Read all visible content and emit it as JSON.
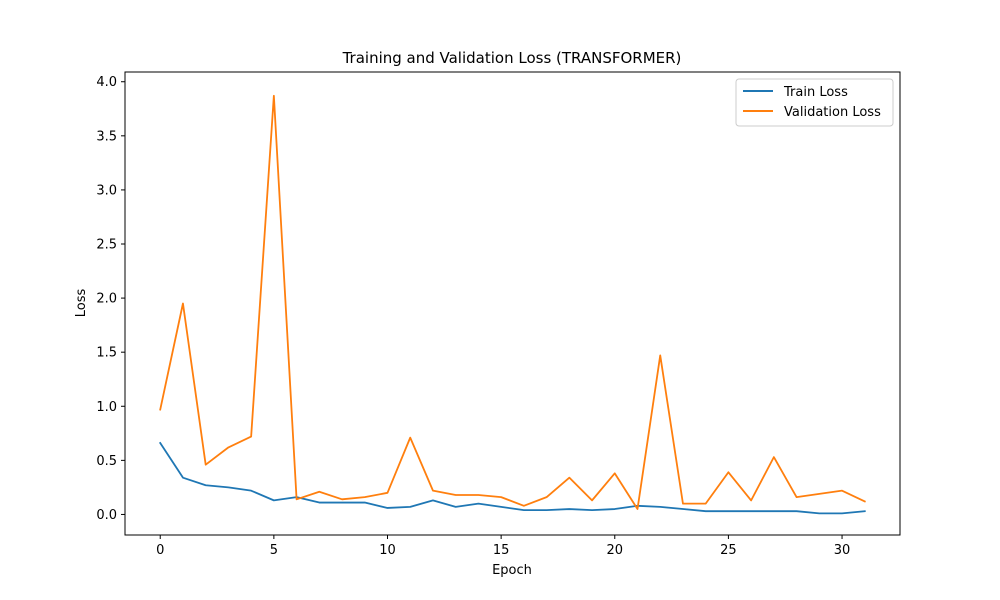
{
  "chart_data": {
    "type": "line",
    "title": "Training and Validation Loss (TRANSFORMER)",
    "xlabel": "Epoch",
    "ylabel": "Loss",
    "xlim": [
      -1.55,
      32.55
    ],
    "ylim": [
      -0.19,
      4.09
    ],
    "xticks": [
      0,
      5,
      10,
      15,
      20,
      25,
      30
    ],
    "yticks": [
      0.0,
      0.5,
      1.0,
      1.5,
      2.0,
      2.5,
      3.0,
      3.5,
      4.0
    ],
    "ytick_labels": [
      "0.0",
      "0.5",
      "1.0",
      "1.5",
      "2.0",
      "2.5",
      "3.0",
      "3.5",
      "4.0"
    ],
    "legend_position": "top-right",
    "grid": false,
    "x": [
      0,
      1,
      2,
      3,
      4,
      5,
      6,
      7,
      8,
      9,
      10,
      11,
      12,
      13,
      14,
      15,
      16,
      17,
      18,
      19,
      20,
      21,
      22,
      23,
      24,
      25,
      26,
      27,
      28,
      29,
      30,
      31
    ],
    "series": [
      {
        "name": "Train Loss",
        "color": "#1f77b4",
        "values": [
          0.66,
          0.34,
          0.27,
          0.25,
          0.22,
          0.13,
          0.16,
          0.11,
          0.11,
          0.11,
          0.06,
          0.07,
          0.13,
          0.07,
          0.1,
          0.07,
          0.04,
          0.04,
          0.05,
          0.04,
          0.05,
          0.08,
          0.07,
          0.05,
          0.03,
          0.03,
          0.03,
          0.03,
          0.03,
          0.01,
          0.01,
          0.03
        ]
      },
      {
        "name": "Validation Loss",
        "color": "#ff7f0e",
        "values": [
          0.97,
          1.95,
          0.46,
          0.62,
          0.72,
          3.87,
          0.14,
          0.21,
          0.14,
          0.16,
          0.2,
          0.71,
          0.22,
          0.18,
          0.18,
          0.16,
          0.08,
          0.16,
          0.34,
          0.13,
          0.38,
          0.05,
          1.47,
          0.1,
          0.1,
          0.39,
          0.13,
          0.53,
          0.16,
          0.19,
          0.22,
          0.12
        ]
      }
    ]
  }
}
